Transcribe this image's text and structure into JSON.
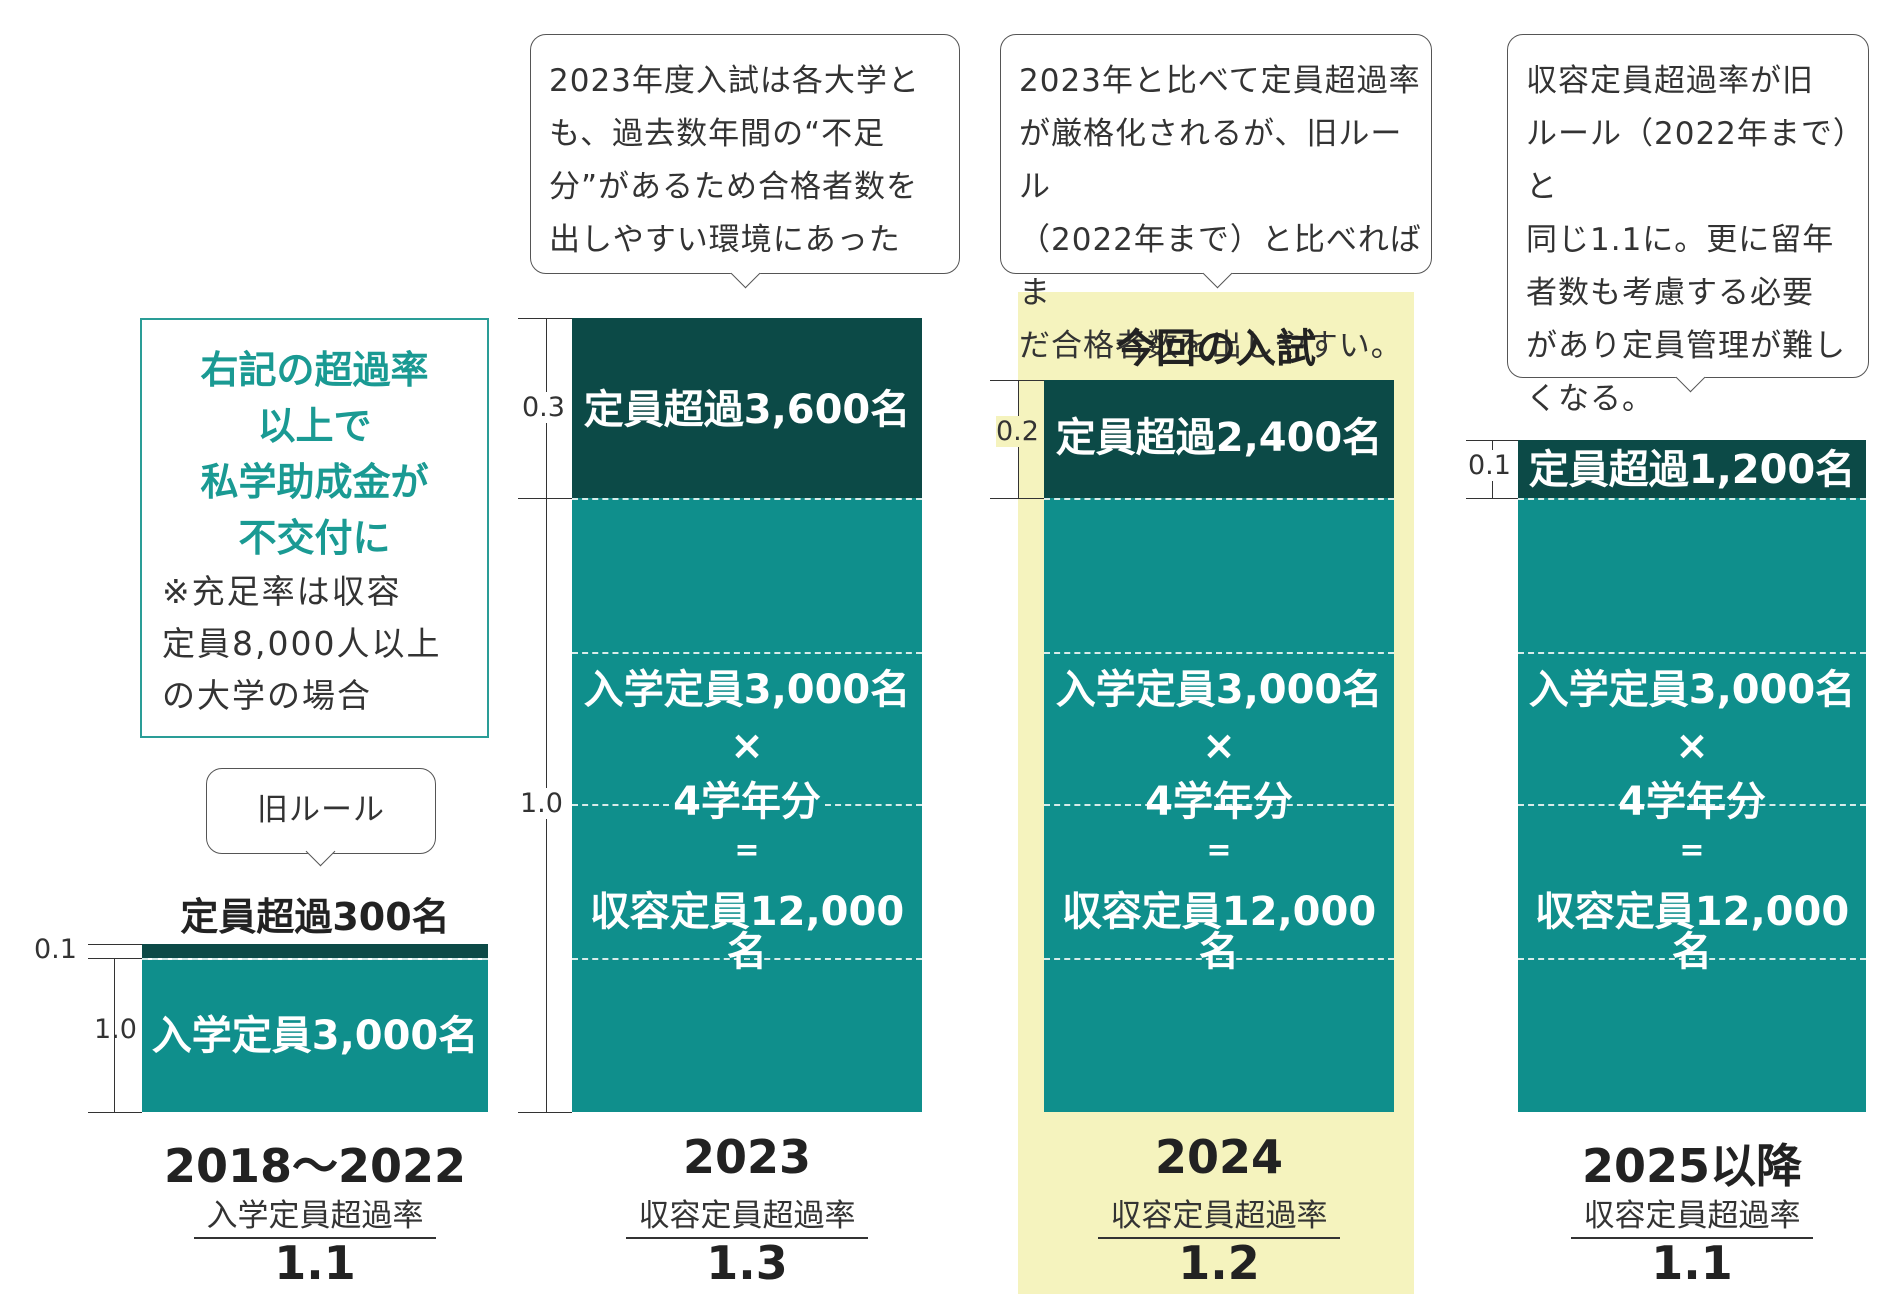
{
  "note_box": {
    "heading": [
      "右記の超過率",
      "以上で",
      "私学助成金が",
      "不交付に"
    ],
    "body": [
      "※充足率は収容",
      "定員8,000人以上",
      "の大学の場合"
    ]
  },
  "callouts": {
    "c2023": [
      "2023年度入試は各大学と",
      "も、過去数年間の“不足",
      "分”があるため合格者数を",
      "出しやすい環境にあった"
    ],
    "c2024": [
      "2023年と比べて定員超過率",
      "が厳格化されるが、旧ルール",
      "（2022年まで）と比べればま",
      "だ合格者数を出しやすい。"
    ],
    "c2025": [
      "収容定員超過率が旧",
      "ルール（2022年まで）と",
      "同じ1.1に。更に留年",
      "者数も考慮する必要",
      "があり定員管理が難し",
      "くなる。"
    ],
    "old_rule": "旧ルール"
  },
  "current_exam_label": "今回の入試",
  "columns": [
    {
      "id": "c2018",
      "year": "2018〜2022",
      "rate_type": "入学定員超過率",
      "rate": "1.1",
      "over_label": "定員超過300名",
      "base_lines": [
        "入学定員3,000名"
      ],
      "ticks": [
        "0.1",
        "1.0"
      ]
    },
    {
      "id": "c2023",
      "year": "2023",
      "rate_type": "収容定員超過率",
      "rate": "1.3",
      "over_label": "定員超過3,600名",
      "base_lines": [
        "入学定員3,000名",
        "×",
        "4学年分",
        "=",
        "収容定員12,000名"
      ],
      "ticks": [
        "0.3",
        "1.0"
      ]
    },
    {
      "id": "c2024",
      "year": "2024",
      "rate_type": "収容定員超過率",
      "rate": "1.2",
      "over_label": "定員超過2,400名",
      "base_lines": [
        "入学定員3,000名",
        "×",
        "4学年分",
        "=",
        "収容定員12,000名"
      ],
      "ticks": [
        "0.2"
      ]
    },
    {
      "id": "c2025",
      "year": "2025以降",
      "rate_type": "収容定員超過率",
      "rate": "1.1",
      "over_label": "定員超過1,200名",
      "base_lines": [
        "入学定員3,000名",
        "×",
        "4学年分",
        "=",
        "収容定員12,000名"
      ],
      "ticks": [
        "0.1"
      ]
    }
  ],
  "colors": {
    "teal": "#0f8f8c",
    "dark_teal": "#0c4a47",
    "highlight": "#f5f3be",
    "note_text": "#1a9a93"
  }
}
